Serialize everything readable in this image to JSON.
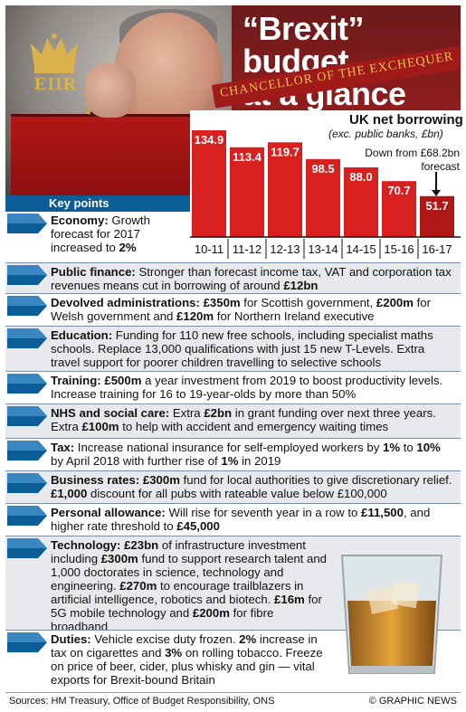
{
  "header": {
    "title_line1": "“Brexit” budget",
    "title_line2": "at a glance",
    "subtitle": "CHANCELLOR OF THE EXCHEQUER",
    "crest_text": "EIIR"
  },
  "chart_data": {
    "type": "bar",
    "title": "UK net borrowing",
    "subtitle": "(exc. public banks, £bn)",
    "categories": [
      "10-11",
      "11-12",
      "12-13",
      "13-14",
      "14-15",
      "15-16",
      "16-17"
    ],
    "values": [
      134.9,
      113.4,
      119.7,
      98.5,
      88.0,
      70.7,
      51.7
    ],
    "value_labels": [
      "134.9",
      "113.4",
      "119.7",
      "98.5",
      "88.0",
      "70.7",
      "51.7"
    ],
    "annotation_line1": "Down from £68.2bn",
    "annotation_line2": "forecast",
    "bar_color": "#d8201f",
    "last_bar_color": "#b01818",
    "ylim": [
      0,
      140
    ]
  },
  "key_points": {
    "header": "Key points",
    "economy": {
      "label": "Economy:",
      "text1": " Growth forecast for 2017 increased to ",
      "bold1": "2%"
    },
    "sections": [
      {
        "label": "Public finance:",
        "parts": [
          {
            "t": " Stronger than forecast income tax, VAT and corporation tax revenues means cut in borrowing of around "
          },
          {
            "b": "£12bn"
          }
        ]
      },
      {
        "label": "Devolved administrations:",
        "parts": [
          {
            "t": " "
          },
          {
            "b": "£350m"
          },
          {
            "t": " for Scottish government, "
          },
          {
            "b": "£200m"
          },
          {
            "t": " for Welsh government and "
          },
          {
            "b": "£120m"
          },
          {
            "t": " for Northern Ireland executive"
          }
        ]
      },
      {
        "label": "Education:",
        "parts": [
          {
            "t": " Funding for 110 new free schools, including specialist maths schools. Replace 13,000 qualifications with just 15 new T-Levels. Extra travel support for poorer children travelling to selective schools"
          }
        ]
      },
      {
        "label": "Training:",
        "parts": [
          {
            "t": " "
          },
          {
            "b": "£500m"
          },
          {
            "t": " a year investment from 2019 to boost productivity levels. Increase training for 16 to 19-year-olds by more than 50%"
          }
        ]
      },
      {
        "label": "NHS and social care:",
        "parts": [
          {
            "t": " Extra "
          },
          {
            "b": "£2bn"
          },
          {
            "t": " in grant funding over next three years. Extra "
          },
          {
            "b": "£100m"
          },
          {
            "t": " to help with accident and emergency waiting times"
          }
        ]
      },
      {
        "label": "Tax:",
        "parts": [
          {
            "t": " Increase national insurance for self-employed workers by "
          },
          {
            "b": "1%"
          },
          {
            "t": " to "
          },
          {
            "b": "10%"
          },
          {
            "t": " by April 2018 with further rise of "
          },
          {
            "b": "1%"
          },
          {
            "t": " in 2019"
          }
        ]
      },
      {
        "label": "Business rates:",
        "parts": [
          {
            "t": " "
          },
          {
            "b": "£300m"
          },
          {
            "t": " fund for local authorities to give discretionary relief. "
          },
          {
            "b": "£1,000"
          },
          {
            "t": " discount for all pubs with rateable value below £100,000"
          }
        ]
      },
      {
        "label": "Personal allowance:",
        "parts": [
          {
            "t": " Will rise for seventh year in a row to "
          },
          {
            "b": "£11,500"
          },
          {
            "t": ", and higher rate threshold to "
          },
          {
            "b": "£45,000"
          }
        ]
      },
      {
        "label": "Technology:",
        "parts": [
          {
            "t": " "
          },
          {
            "b": "£23bn"
          },
          {
            "t": " of infrastructure investment including "
          },
          {
            "b": "£300m"
          },
          {
            "t": " fund to support research talent and 1,000 doctorates in science, technology and engineering. "
          },
          {
            "b": "£270m"
          },
          {
            "t": " to encourage trailblazers in artificial intelligence, robotics and biotech. "
          },
          {
            "b": "£16m"
          },
          {
            "t": " for 5G mobile technology and "
          },
          {
            "b": "£200m"
          },
          {
            "t": " for fibre broadband"
          }
        ]
      },
      {
        "label": "Duties:",
        "parts": [
          {
            "t": " Vehicle excise duty frozen. "
          },
          {
            "b": "2%"
          },
          {
            "t": " increase in tax on cigarettes and "
          },
          {
            "b": "3%"
          },
          {
            "t": " on rolling tobacco. Freeze on price of beer, cider, plus whisky and gin — vital exports for Brexit-bound Britain"
          }
        ]
      }
    ]
  },
  "footer": {
    "sources": "Sources: HM Treasury, Office of Budget Responsibility, ONS",
    "credit": "© GRAPHIC NEWS"
  },
  "colors": {
    "accent_blue": "#0b5d98",
    "budget_red": "#d8201f",
    "gold": "#e6c14e"
  }
}
